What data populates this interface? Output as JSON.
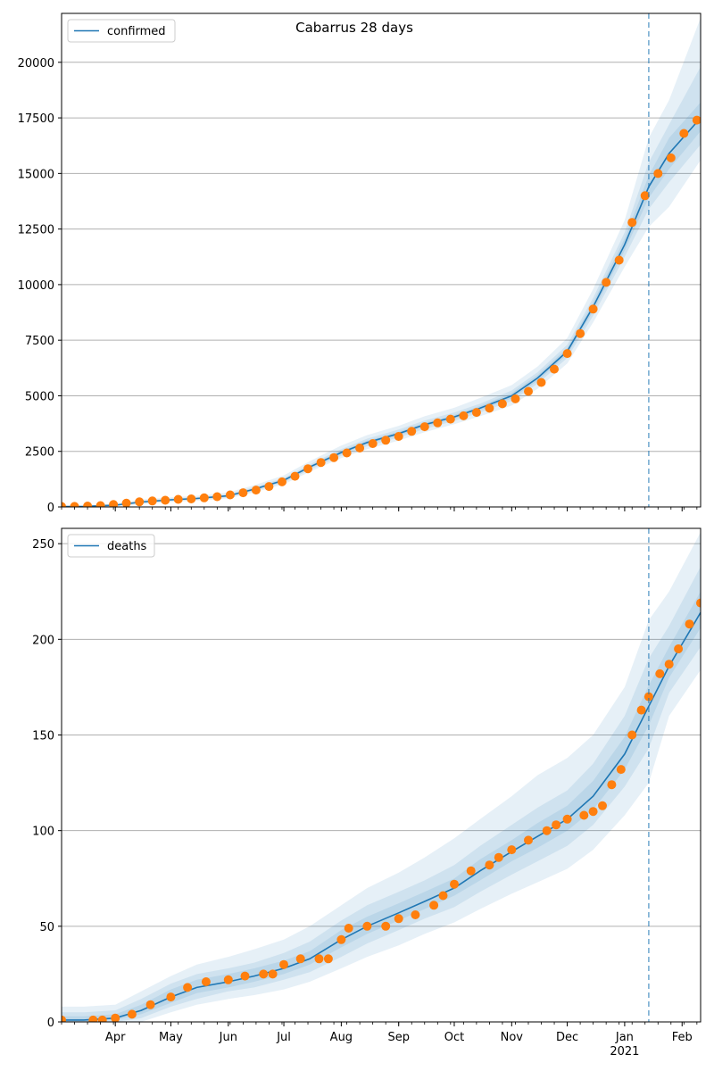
{
  "figure": {
    "title": "Cabarrus 28 days"
  },
  "colors": {
    "model_line": "#1f77b4",
    "observed_points": "#ff7f0e",
    "band": "#1f77b4",
    "grid": "#b0b0b0",
    "forecast_marker": "#1f77b4"
  },
  "x_axis": {
    "month_ticks": [
      {
        "date": "2020-04-01",
        "label": "Apr"
      },
      {
        "date": "2020-05-01",
        "label": "May"
      },
      {
        "date": "2020-06-01",
        "label": "Jun"
      },
      {
        "date": "2020-07-01",
        "label": "Jul"
      },
      {
        "date": "2020-08-01",
        "label": "Aug"
      },
      {
        "date": "2020-09-01",
        "label": "Sep"
      },
      {
        "date": "2020-10-01",
        "label": "Oct"
      },
      {
        "date": "2020-11-01",
        "label": "Nov"
      },
      {
        "date": "2020-12-01",
        "label": "Dec"
      },
      {
        "date": "2021-01-01",
        "label": "Jan"
      },
      {
        "date": "2021-02-01",
        "label": "Feb"
      }
    ],
    "year_label": "2021",
    "range": [
      "2020-03-03",
      "2021-02-11"
    ],
    "forecast_start": "2021-01-14"
  },
  "chart_data": [
    {
      "type": "line",
      "legend": "confirmed",
      "legend_position": "upper-left",
      "grid": "horizontal",
      "xlim": [
        "2020-03-03",
        "2021-02-11"
      ],
      "ylim": [
        0,
        22200
      ],
      "yticks": [
        0,
        2500,
        5000,
        7500,
        10000,
        12500,
        15000,
        17500,
        20000
      ],
      "model": {
        "dates": [
          "2020-03-03",
          "2020-03-15",
          "2020-04-01",
          "2020-04-15",
          "2020-05-01",
          "2020-05-15",
          "2020-06-01",
          "2020-06-15",
          "2020-07-01",
          "2020-07-15",
          "2020-08-01",
          "2020-08-15",
          "2020-09-01",
          "2020-09-15",
          "2020-10-01",
          "2020-10-15",
          "2020-11-01",
          "2020-11-15",
          "2020-12-01",
          "2020-12-15",
          "2021-01-01",
          "2021-01-14",
          "2021-01-25",
          "2021-02-11"
        ],
        "median": [
          20,
          25,
          80,
          220,
          320,
          380,
          500,
          800,
          1200,
          1800,
          2450,
          2900,
          3300,
          3700,
          4050,
          4450,
          5000,
          5800,
          7000,
          9000,
          11800,
          14400,
          15900,
          17500
        ],
        "bands": [
          {
            "lower": [
              0,
              0,
              20,
              120,
              220,
              280,
              380,
              650,
              1020,
              1580,
              2200,
              2600,
              2980,
              3360,
              3720,
              4080,
              4560,
              5320,
              6450,
              8300,
              10800,
              12600,
              13500,
              15600
            ],
            "upper": [
              60,
              70,
              150,
              330,
              430,
              500,
              650,
              980,
              1420,
              2060,
              2760,
              3230,
              3650,
              4080,
              4460,
              4900,
              5480,
              6320,
              7600,
              9800,
              12900,
              16600,
              18300,
              22000
            ]
          },
          {
            "lower": [
              0,
              5,
              45,
              160,
              260,
              320,
              430,
              710,
              1100,
              1680,
              2300,
              2730,
              3120,
              3510,
              3870,
              4250,
              4760,
              5540,
              6700,
              8600,
              11250,
              13400,
              14600,
              16300
            ],
            "upper": [
              40,
              50,
              115,
              280,
              380,
              440,
              570,
              890,
              1300,
              1920,
              2600,
              3070,
              3480,
              3890,
              4250,
              4650,
              5240,
              6060,
              7300,
              9400,
              12350,
              15500,
              17200,
              19800
            ]
          },
          {
            "lower": [
              5,
              12,
              62,
              190,
              290,
              350,
              465,
              755,
              1150,
              1740,
              2380,
              2820,
              3210,
              3610,
              3960,
              4350,
              4880,
              5670,
              6850,
              8800,
              11530,
              13900,
              15200,
              16900
            ],
            "upper": [
              32,
              38,
              98,
              250,
              350,
              410,
              535,
              845,
              1250,
              1860,
              2520,
              2980,
              3390,
              3790,
              4140,
              4550,
              5120,
              5930,
              7150,
              9200,
              12070,
              14900,
              16600,
              18200
            ]
          }
        ]
      },
      "observed": {
        "dates": [
          "2020-03-03",
          "2020-03-10",
          "2020-03-17",
          "2020-03-24",
          "2020-03-31",
          "2020-04-07",
          "2020-04-14",
          "2020-04-21",
          "2020-04-28",
          "2020-05-05",
          "2020-05-12",
          "2020-05-19",
          "2020-05-26",
          "2020-06-02",
          "2020-06-09",
          "2020-06-16",
          "2020-06-23",
          "2020-06-30",
          "2020-07-07",
          "2020-07-14",
          "2020-07-21",
          "2020-07-28",
          "2020-08-04",
          "2020-08-11",
          "2020-08-18",
          "2020-08-25",
          "2020-09-01",
          "2020-09-08",
          "2020-09-15",
          "2020-09-22",
          "2020-09-29",
          "2020-10-06",
          "2020-10-13",
          "2020-10-20",
          "2020-10-27",
          "2020-11-03",
          "2020-11-10",
          "2020-11-17",
          "2020-11-24",
          "2020-12-01",
          "2020-12-08",
          "2020-12-15",
          "2020-12-22",
          "2020-12-29",
          "2021-01-05",
          "2021-01-12",
          "2021-01-19",
          "2021-01-26",
          "2021-02-02",
          "2021-02-09"
        ],
        "values": [
          20,
          25,
          40,
          60,
          110,
          170,
          230,
          270,
          300,
          340,
          360,
          410,
          460,
          540,
          640,
          760,
          920,
          1130,
          1380,
          1720,
          2000,
          2220,
          2430,
          2650,
          2850,
          3000,
          3170,
          3400,
          3610,
          3780,
          3950,
          4100,
          4250,
          4440,
          4640,
          4860,
          5200,
          5600,
          6200,
          6900,
          7800,
          8900,
          10100,
          11100,
          12800,
          14000,
          15000,
          15700,
          16800,
          17400
        ]
      }
    },
    {
      "type": "line",
      "legend": "deaths",
      "legend_position": "upper-left",
      "grid": "horizontal",
      "xlim": [
        "2020-03-03",
        "2021-02-11"
      ],
      "ylim": [
        0,
        258
      ],
      "yticks": [
        0,
        50,
        100,
        150,
        200,
        250
      ],
      "model": {
        "dates": [
          "2020-03-03",
          "2020-03-15",
          "2020-04-01",
          "2020-04-15",
          "2020-05-01",
          "2020-05-15",
          "2020-06-01",
          "2020-06-15",
          "2020-07-01",
          "2020-07-15",
          "2020-08-01",
          "2020-08-15",
          "2020-09-01",
          "2020-09-15",
          "2020-10-01",
          "2020-10-15",
          "2020-11-01",
          "2020-11-15",
          "2020-12-01",
          "2020-12-15",
          "2021-01-01",
          "2021-01-14",
          "2021-01-25",
          "2021-02-11"
        ],
        "median": [
          1,
          1,
          2,
          6,
          13,
          18,
          21,
          24,
          28,
          33,
          43,
          50,
          57,
          63,
          70,
          79,
          89,
          97,
          106,
          118,
          140,
          165,
          186,
          214
        ],
        "bands": [
          {
            "lower": [
              0,
              0,
              0,
              0,
              5,
              9,
              12,
              14,
              17,
              21,
              28,
              34,
              40,
              46,
              52,
              59,
              67,
              73,
              80,
              90,
              108,
              125,
              160,
              184
            ],
            "upper": [
              8,
              8,
              9,
              16,
              24,
              30,
              34,
              38,
              43,
              50,
              61,
              70,
              78,
              86,
              96,
              106,
              118,
              129,
              138,
              150,
              175,
              210,
              225,
              256
            ]
          },
          {
            "lower": [
              0,
              0,
              0,
              2,
              8,
              12,
              16,
              18,
              22,
              26,
              34,
              41,
              48,
              54,
              60,
              68,
              77,
              84,
              92,
              103,
              123,
              143,
              172,
              196
            ],
            "upper": [
              5,
              5,
              6,
              12,
              20,
              25,
              28,
              31,
              36,
              42,
              53,
              61,
              68,
              74,
              82,
              92,
              103,
              112,
              121,
              135,
              160,
              190,
              207,
              238
            ]
          },
          {
            "lower": [
              0,
              0,
              1,
              4,
              10,
              15,
              18,
              21,
              25,
              30,
              39,
              46,
              53,
              59,
              66,
              74,
              84,
              91,
              100,
              111,
              132,
              155,
              180,
              206
            ],
            "upper": [
              3,
              3,
              4,
              9,
              17,
              22,
              25,
              28,
              32,
              37,
              48,
              55,
              62,
              68,
              75,
              85,
              95,
              104,
              113,
              126,
              149,
              176,
              196,
              225
            ]
          }
        ]
      },
      "observed": {
        "dates": [
          "2020-03-03",
          "2020-03-20",
          "2020-03-25",
          "2020-04-01",
          "2020-04-10",
          "2020-04-20",
          "2020-05-01",
          "2020-05-10",
          "2020-05-20",
          "2020-06-01",
          "2020-06-10",
          "2020-06-20",
          "2020-06-25",
          "2020-07-01",
          "2020-07-10",
          "2020-07-20",
          "2020-07-25",
          "2020-08-01",
          "2020-08-05",
          "2020-08-15",
          "2020-08-25",
          "2020-09-01",
          "2020-09-10",
          "2020-09-20",
          "2020-09-25",
          "2020-10-01",
          "2020-10-10",
          "2020-10-20",
          "2020-10-25",
          "2020-11-01",
          "2020-11-10",
          "2020-11-20",
          "2020-11-25",
          "2020-12-01",
          "2020-12-10",
          "2020-12-15",
          "2020-12-20",
          "2020-12-25",
          "2020-12-30",
          "2021-01-05",
          "2021-01-10",
          "2021-01-14",
          "2021-01-20",
          "2021-01-25",
          "2021-01-30",
          "2021-02-05",
          "2021-02-11"
        ],
        "values": [
          1,
          1,
          1,
          2,
          4,
          9,
          13,
          18,
          21,
          22,
          24,
          25,
          25,
          30,
          33,
          33,
          33,
          43,
          49,
          50,
          50,
          54,
          56,
          61,
          66,
          72,
          79,
          82,
          86,
          90,
          95,
          100,
          103,
          106,
          108,
          110,
          113,
          124,
          132,
          150,
          163,
          170,
          182,
          187,
          195,
          208,
          219
        ]
      }
    }
  ]
}
